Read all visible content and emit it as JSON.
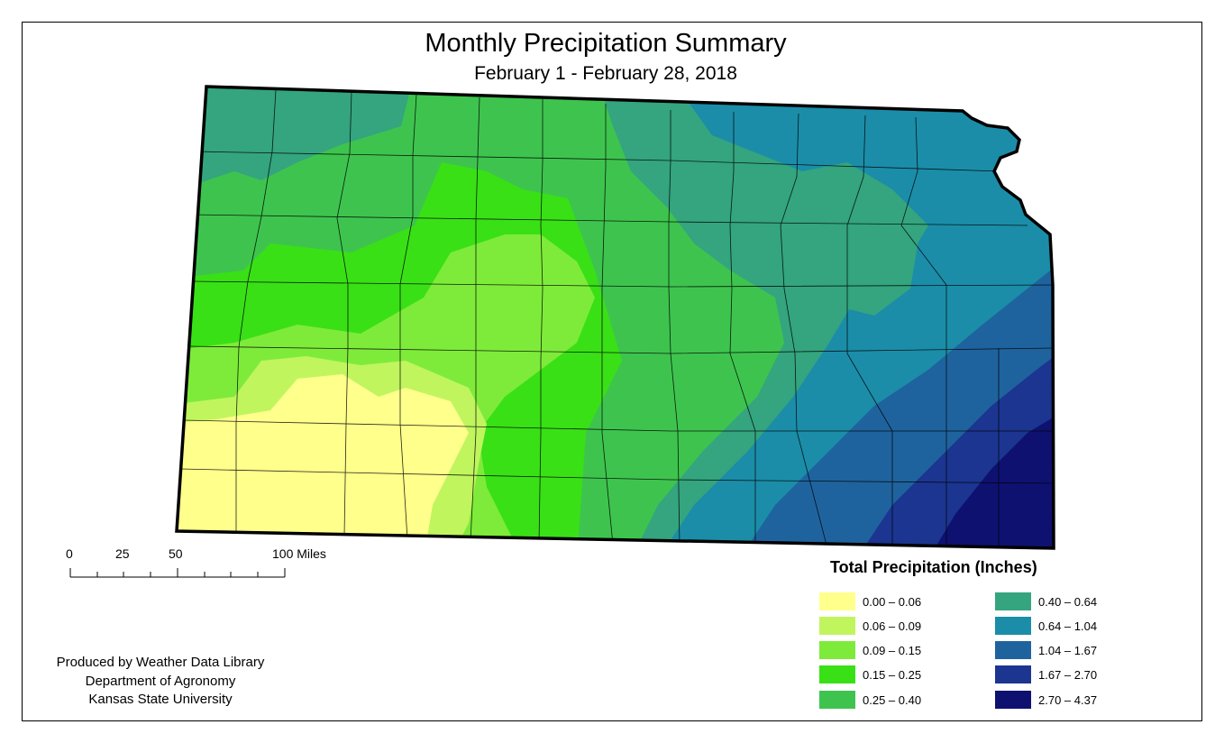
{
  "title": "Monthly Precipitation Summary",
  "subtitle": "February 1 - February 28, 2018",
  "scale_bar": {
    "ticks": [
      "0",
      "25",
      "50",
      "100 Miles"
    ]
  },
  "credits": [
    "Produced by Weather Data Library",
    "Department of Agronomy",
    "Kansas State University"
  ],
  "legend": {
    "title": "Total Precipitation (Inches)",
    "classes": [
      {
        "range": "0.00 – 0.06",
        "color": "#ffff8c"
      },
      {
        "range": "0.06 – 0.09",
        "color": "#c0f55e"
      },
      {
        "range": "0.09 – 0.15",
        "color": "#7eeb3a"
      },
      {
        "range": "0.15 – 0.25",
        "color": "#39e016"
      },
      {
        "range": "0.25 – 0.40",
        "color": "#3ec44e"
      },
      {
        "range": "0.40 – 0.64",
        "color": "#34a57e"
      },
      {
        "range": "0.64 – 1.04",
        "color": "#1b8da8"
      },
      {
        "range": "1.04 – 1.67",
        "color": "#1f639e"
      },
      {
        "range": "1.67 – 2.70",
        "color": "#1b3590"
      },
      {
        "range": "2.70 – 4.37",
        "color": "#0e1170"
      }
    ]
  }
}
